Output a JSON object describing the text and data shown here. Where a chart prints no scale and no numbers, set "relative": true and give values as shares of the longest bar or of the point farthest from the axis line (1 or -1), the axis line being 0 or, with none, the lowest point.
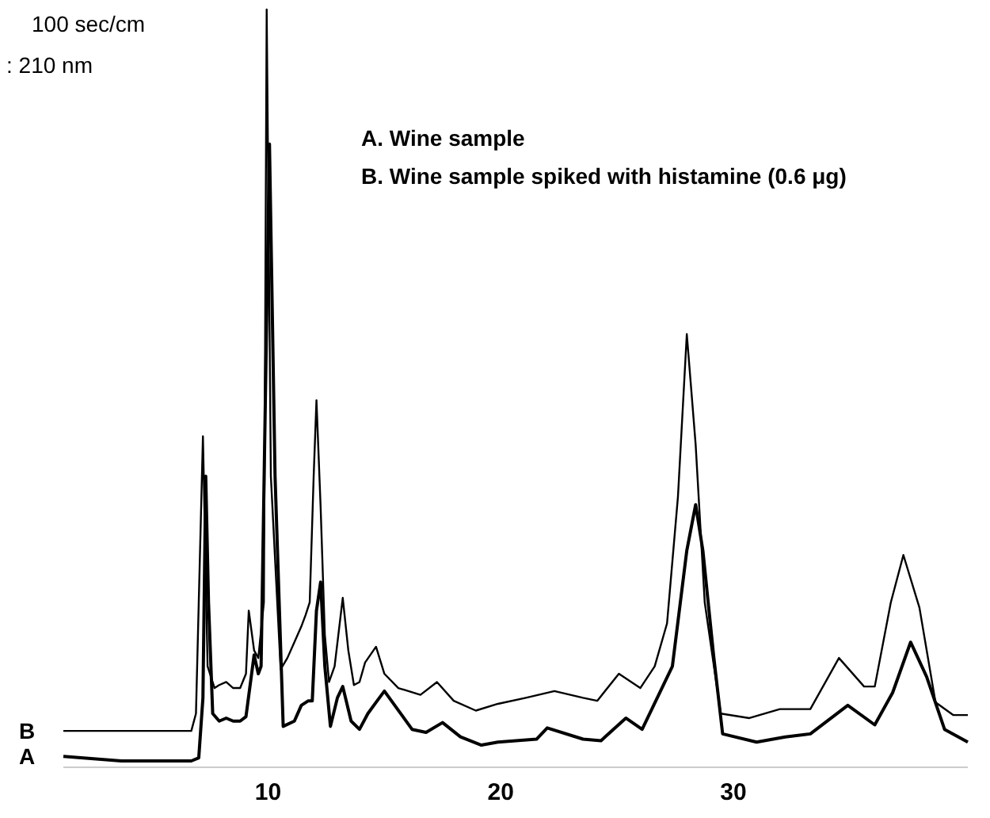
{
  "chart_data": {
    "type": "line",
    "xlim": [
      1.2,
      40.08
    ],
    "xticks": [
      10,
      20,
      30
    ],
    "relative": true,
    "legend": false,
    "grid": false,
    "marker": "none",
    "line_style": "solid",
    "annotations": [
      "100 sec/cm",
      ":  210 nm",
      "A.  Wine sample",
      "B.  Wine sample spiked with histamine (0.6 μg)"
    ],
    "series": [
      {
        "name": "B",
        "color": "#000000",
        "x": [
          1.2,
          6.7,
          6.9,
          7.2,
          7.4,
          7.7,
          7.9,
          8.2,
          8.5,
          8.8,
          9.05,
          9.17,
          9.4,
          9.58,
          9.82,
          9.94,
          10.12,
          10.54,
          10.83,
          11.13,
          11.43,
          11.61,
          11.79,
          11.96,
          12.08,
          12.26,
          12.44,
          12.62,
          12.86,
          13.21,
          13.45,
          13.69,
          13.93,
          14.17,
          14.64,
          15.0,
          15.6,
          16.55,
          17.26,
          17.98,
          18.93,
          19.88,
          21.08,
          22.31,
          23.54,
          24.15,
          25.08,
          26.0,
          26.62,
          27.15,
          27.62,
          28.0,
          28.38,
          28.77,
          29.46,
          30.69,
          32.0,
          33.31,
          34.54,
          35.62,
          36.08,
          36.77,
          37.31,
          38.0,
          38.69,
          39.46,
          40.08
        ],
        "values": [
          0.04,
          0.04,
          0.063,
          0.432,
          0.126,
          0.097,
          0.101,
          0.105,
          0.097,
          0.097,
          0.116,
          0.2,
          0.147,
          0.137,
          0.211,
          1.0,
          0.379,
          0.122,
          0.137,
          0.158,
          0.179,
          0.194,
          0.211,
          0.379,
          0.48,
          0.337,
          0.168,
          0.105,
          0.126,
          0.217,
          0.147,
          0.101,
          0.105,
          0.131,
          0.152,
          0.116,
          0.097,
          0.088,
          0.105,
          0.08,
          0.067,
          0.076,
          0.084,
          0.093,
          0.084,
          0.08,
          0.116,
          0.097,
          0.126,
          0.183,
          0.352,
          0.568,
          0.421,
          0.211,
          0.063,
          0.057,
          0.069,
          0.069,
          0.137,
          0.099,
          0.099,
          0.211,
          0.274,
          0.204,
          0.078,
          0.061,
          0.061
        ]
      },
      {
        "name": "A",
        "color": "#000000",
        "x": [
          1.2,
          3.69,
          6.7,
          7.02,
          7.2,
          7.32,
          7.44,
          7.62,
          7.9,
          8.2,
          8.5,
          8.8,
          9.05,
          9.4,
          9.58,
          9.7,
          10.06,
          10.3,
          10.65,
          11.13,
          11.43,
          11.73,
          11.9,
          12.08,
          12.26,
          12.44,
          12.68,
          12.98,
          13.21,
          13.57,
          13.93,
          14.29,
          14.64,
          15.0,
          16.19,
          16.79,
          17.5,
          18.27,
          19.17,
          19.88,
          21.54,
          22.0,
          23.54,
          24.31,
          25.38,
          26.08,
          27.38,
          28.0,
          28.38,
          28.69,
          29.15,
          29.54,
          31.0,
          32.23,
          33.31,
          34.92,
          36.08,
          36.85,
          37.62,
          38.31,
          39.08,
          40.08
        ],
        "values": [
          0.006,
          0,
          0,
          0.004,
          0.084,
          0.379,
          0.211,
          0.063,
          0.053,
          0.057,
          0.053,
          0.053,
          0.059,
          0.141,
          0.116,
          0.126,
          0.821,
          0.379,
          0.046,
          0.053,
          0.074,
          0.08,
          0.08,
          0.2,
          0.238,
          0.126,
          0.046,
          0.084,
          0.099,
          0.053,
          0.042,
          0.063,
          0.078,
          0.093,
          0.042,
          0.038,
          0.051,
          0.032,
          0.021,
          0.025,
          0.029,
          0.044,
          0.029,
          0.027,
          0.057,
          0.042,
          0.126,
          0.28,
          0.341,
          0.28,
          0.141,
          0.036,
          0.025,
          0.032,
          0.036,
          0.074,
          0.048,
          0.091,
          0.158,
          0.112,
          0.042,
          0.025
        ]
      }
    ]
  }
}
